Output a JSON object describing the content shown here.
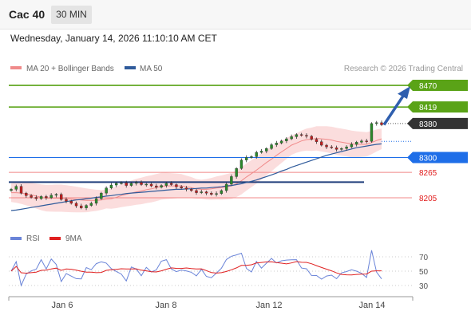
{
  "header": {
    "instrument": "Cac 40",
    "timeframe": "30 MIN"
  },
  "datetime": "Wednesday, January 14, 2026 11:10:10 AM CET",
  "legend": {
    "ma20": "MA 20 + Bollinger Bands",
    "ma50": "MA 50",
    "credit": "Research © 2026 Trading Central",
    "rsi": "RSI",
    "ma9": "9MA"
  },
  "colors": {
    "target": "#5aa317",
    "current": "#333333",
    "pivot": "#1e6ee8",
    "support": "#e11b1b",
    "ma50": "#2f5b9b",
    "bollinger_fill": "#fbd9d9",
    "bollinger_line": "#f08a8a",
    "rsi": "#6a84d8",
    "rsi_ma": "#e02020",
    "arrow": "#2f5fae"
  },
  "chart_data": {
    "type": "candlestick",
    "x_labels": [
      "Jan 6",
      "Jan 8",
      "Jan 12",
      "Jan 14"
    ],
    "price_levels": [
      {
        "value": 8470,
        "label": "8470",
        "kind": "target"
      },
      {
        "value": 8419,
        "label": "8419",
        "kind": "target"
      },
      {
        "value": 8380,
        "label": "8380",
        "kind": "current"
      },
      {
        "value": 8300,
        "label": "8300",
        "kind": "pivot"
      },
      {
        "value": 8265,
        "label": "8265",
        "kind": "support"
      },
      {
        "value": 8205,
        "label": "8205",
        "kind": "support"
      }
    ],
    "price_range": [
      8160,
      8490
    ],
    "resistance_zone": 8242,
    "close": [
      8225,
      8232,
      8216,
      8210,
      8206,
      8203,
      8208,
      8205,
      8211,
      8213,
      8201,
      8197,
      8192,
      8186,
      8181,
      8187,
      8192,
      8203,
      8216,
      8228,
      8235,
      8239,
      8240,
      8234,
      8239,
      8241,
      8236,
      8237,
      8233,
      8230,
      8234,
      8239,
      8236,
      8231,
      8228,
      8225,
      8222,
      8217,
      8219,
      8216,
      8213,
      8215,
      8222,
      8237,
      8255,
      8274,
      8294,
      8300,
      8302,
      8312,
      8315,
      8321,
      8330,
      8334,
      8339,
      8344,
      8349,
      8354,
      8352,
      8350,
      8343,
      8337,
      8329,
      8325,
      8323,
      8319,
      8321,
      8325,
      8331,
      8336,
      8339,
      8338,
      8380,
      8382,
      8377
    ],
    "ma20": [
      8217,
      8217,
      8216,
      8214,
      8212,
      8209,
      8206,
      8204,
      8204,
      8204,
      8204,
      8203,
      8202,
      8201,
      8200,
      8199,
      8199,
      8199,
      8200,
      8202,
      8203,
      8206,
      8210,
      8213,
      8216,
      8219,
      8221,
      8224,
      8226,
      8229,
      8232,
      8233,
      8233,
      8233,
      8233,
      8231,
      8229,
      8226,
      8225,
      8225,
      8226,
      8228,
      8229,
      8231,
      8233,
      8238,
      8245,
      8254,
      8262,
      8270,
      8279,
      8288,
      8296,
      8305,
      8313,
      8321,
      8329,
      8334,
      8339,
      8342,
      8343,
      8345,
      8344,
      8343,
      8341,
      8338,
      8336,
      8334,
      8332,
      8331,
      8331,
      8331,
      8335,
      8340,
      8344
    ],
    "ma50": [
      8175,
      8176,
      8178,
      8180,
      8182,
      8184,
      8186,
      8188,
      8190,
      8192,
      8194,
      8196,
      8198,
      8200,
      8201,
      8203,
      8204,
      8206,
      8207,
      8209,
      8210,
      8212,
      8213,
      8215,
      8216,
      8217,
      8218,
      8219,
      8220,
      8221,
      8222,
      8223,
      8224,
      8225,
      8225,
      8226,
      8226,
      8227,
      8228,
      8228,
      8229,
      8230,
      8231,
      8233,
      8234,
      8236,
      8238,
      8241,
      8244,
      8247,
      8251,
      8255,
      8259,
      8263,
      8268,
      8272,
      8277,
      8281,
      8285,
      8289,
      8293,
      8297,
      8301,
      8305,
      8308,
      8311,
      8314,
      8317,
      8320,
      8323,
      8325,
      8327,
      8329,
      8331,
      8332
    ],
    "rsi": {
      "range": [
        0,
        100
      ],
      "ticks": [
        70,
        50,
        30
      ],
      "series": [
        "RSI",
        "9MA"
      ]
    }
  }
}
